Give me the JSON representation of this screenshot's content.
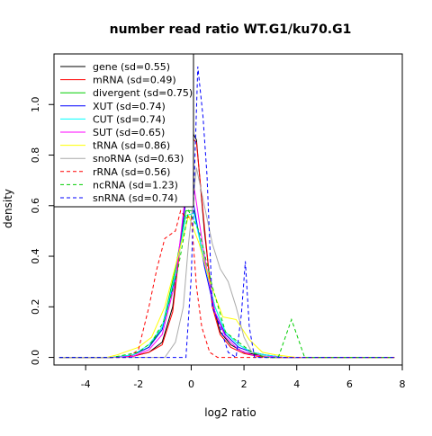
{
  "chart_data": {
    "type": "line",
    "title": "number read ratio WT.G1/ku70.G1",
    "xlabel": "log2 ratio",
    "ylabel": "density",
    "xlim": [
      -5.2,
      8.0
    ],
    "ylim": [
      -0.03,
      1.2
    ],
    "x_ticks": [
      -4,
      -2,
      0,
      2,
      4,
      6,
      8
    ],
    "y_ticks": [
      0.0,
      0.2,
      0.4,
      0.6,
      0.8,
      1.0
    ],
    "x_tick_labels": [
      "-4",
      "-2",
      "0",
      "2",
      "4",
      "6",
      "8"
    ],
    "y_tick_labels": [
      "0.0",
      "0.2",
      "0.4",
      "0.6",
      "0.8",
      "1.0"
    ],
    "grid": false,
    "legend_position": "top-left",
    "series": [
      {
        "name": "gene (sd=0.55)",
        "color": "#000000",
        "dash": false,
        "x": [
          -5,
          -3,
          -2.2,
          -1.6,
          -1.1,
          -0.7,
          -0.3,
          0,
          0.2,
          0.5,
          0.8,
          1.1,
          1.5,
          2,
          2.5,
          3,
          4,
          7.7
        ],
        "y": [
          0,
          0,
          0.005,
          0.02,
          0.06,
          0.2,
          0.55,
          0.9,
          0.86,
          0.5,
          0.22,
          0.1,
          0.05,
          0.02,
          0.01,
          0,
          0,
          0
        ]
      },
      {
        "name": "mRNA (sd=0.49)",
        "color": "#ff0000",
        "dash": false,
        "x": [
          -5,
          -3,
          -2.2,
          -1.6,
          -1.1,
          -0.7,
          -0.3,
          0,
          0.2,
          0.5,
          0.8,
          1.1,
          1.5,
          2,
          2.5,
          3,
          4,
          7.7
        ],
        "y": [
          0,
          0,
          0.005,
          0.02,
          0.05,
          0.18,
          0.55,
          0.87,
          0.85,
          0.52,
          0.2,
          0.09,
          0.04,
          0.015,
          0.005,
          0,
          0,
          0
        ]
      },
      {
        "name": "divergent (sd=0.75)",
        "color": "#00cd00",
        "dash": false,
        "x": [
          -5,
          -3,
          -2.2,
          -1.6,
          -1.1,
          -0.6,
          -0.2,
          0.1,
          0.5,
          0.9,
          1.3,
          1.8,
          2.3,
          2.8,
          3.5,
          4,
          7.7
        ],
        "y": [
          0,
          0,
          0.01,
          0.04,
          0.12,
          0.35,
          0.58,
          0.58,
          0.38,
          0.2,
          0.1,
          0.05,
          0.02,
          0.01,
          0,
          0,
          0
        ]
      },
      {
        "name": "XUT (sd=0.74)",
        "color": "#0000ff",
        "dash": false,
        "x": [
          -5,
          -3,
          -2.2,
          -1.6,
          -1.1,
          -0.6,
          -0.2,
          0.1,
          0.5,
          0.9,
          1.3,
          1.8,
          2.3,
          2.8,
          3.5,
          4,
          7.7
        ],
        "y": [
          0,
          0,
          0.01,
          0.04,
          0.11,
          0.32,
          0.62,
          0.6,
          0.36,
          0.18,
          0.09,
          0.04,
          0.02,
          0.01,
          0,
          0,
          0
        ]
      },
      {
        "name": "CUT (sd=0.74)",
        "color": "#00ffff",
        "dash": false,
        "x": [
          -5,
          -3,
          -2.2,
          -1.6,
          -1.1,
          -0.6,
          -0.2,
          0.1,
          0.5,
          0.9,
          1.3,
          1.8,
          2.3,
          2.8,
          3.5,
          4,
          7.7
        ],
        "y": [
          0,
          0,
          0.01,
          0.05,
          0.12,
          0.33,
          0.56,
          0.57,
          0.38,
          0.2,
          0.1,
          0.05,
          0.02,
          0.01,
          0,
          0,
          0
        ]
      },
      {
        "name": "SUT (sd=0.65)",
        "color": "#ff00ff",
        "dash": false,
        "x": [
          -5,
          -3,
          -2.2,
          -1.6,
          -1.1,
          -0.6,
          -0.2,
          0.1,
          0.5,
          0.9,
          1.3,
          1.8,
          2.3,
          2.8,
          3.5,
          4,
          7.7
        ],
        "y": [
          0,
          0,
          0.005,
          0.03,
          0.09,
          0.3,
          0.66,
          0.68,
          0.4,
          0.18,
          0.08,
          0.03,
          0.01,
          0.005,
          0,
          0,
          0
        ]
      },
      {
        "name": "tRNA (sd=0.86)",
        "color": "#ffff00",
        "dash": false,
        "x": [
          -5,
          -3.2,
          -2.8,
          -2,
          -1.5,
          -1,
          -0.5,
          -0.1,
          0.3,
          0.7,
          1.2,
          1.7,
          2.2,
          2.7,
          3.2,
          4,
          7.7
        ],
        "y": [
          0,
          0,
          0.01,
          0.04,
          0.08,
          0.2,
          0.4,
          0.56,
          0.45,
          0.3,
          0.16,
          0.15,
          0.07,
          0.02,
          0.01,
          0,
          0
        ]
      },
      {
        "name": "snoRNA (sd=0.63)",
        "color": "#aaaaaa",
        "dash": false,
        "x": [
          -5,
          -1,
          -0.6,
          -0.3,
          -0.1,
          0.2,
          0.5,
          0.8,
          1.1,
          1.4,
          1.7,
          2.0,
          2.3,
          2.6,
          3.0,
          7.7
        ],
        "y": [
          0,
          0,
          0.06,
          0.2,
          0.45,
          0.75,
          0.6,
          0.45,
          0.35,
          0.3,
          0.2,
          0.08,
          0.02,
          0.01,
          0,
          0
        ]
      },
      {
        "name": "rRNA (sd=0.56)",
        "color": "#ff0000",
        "dash": true,
        "x": [
          -5,
          -2.4,
          -2.0,
          -1.6,
          -1.3,
          -1.0,
          -0.6,
          -0.4,
          -0.2,
          0,
          0.2,
          0.4,
          0.7,
          1.0,
          7.7
        ],
        "y": [
          0,
          0,
          0.03,
          0.2,
          0.35,
          0.47,
          0.5,
          0.58,
          0.55,
          0.56,
          0.28,
          0.12,
          0.02,
          0,
          0
        ]
      },
      {
        "name": "ncRNA (sd=1.23)",
        "color": "#00cd00",
        "dash": true,
        "x": [
          -5,
          -3,
          -2,
          -1.5,
          -1,
          -0.5,
          -0.1,
          0.3,
          0.8,
          1.3,
          1.8,
          2.3,
          2.8,
          3.3,
          3.8,
          4.3,
          7.7
        ],
        "y": [
          0,
          0,
          0.02,
          0.06,
          0.15,
          0.35,
          0.58,
          0.5,
          0.28,
          0.1,
          0.06,
          0.02,
          0,
          0,
          0.15,
          0,
          0
        ]
      },
      {
        "name": "snRNA (sd=0.74)",
        "color": "#0000ff",
        "dash": true,
        "x": [
          -5,
          -0.2,
          0,
          0.25,
          0.45,
          0.6,
          0.8,
          1.1,
          1.4,
          1.7,
          1.9,
          2.05,
          2.2,
          2.4,
          7.7
        ],
        "y": [
          0,
          0,
          0.32,
          1.15,
          0.95,
          0.72,
          0.2,
          0.12,
          0.02,
          0,
          0.17,
          0.38,
          0.12,
          0,
          0
        ]
      }
    ]
  }
}
